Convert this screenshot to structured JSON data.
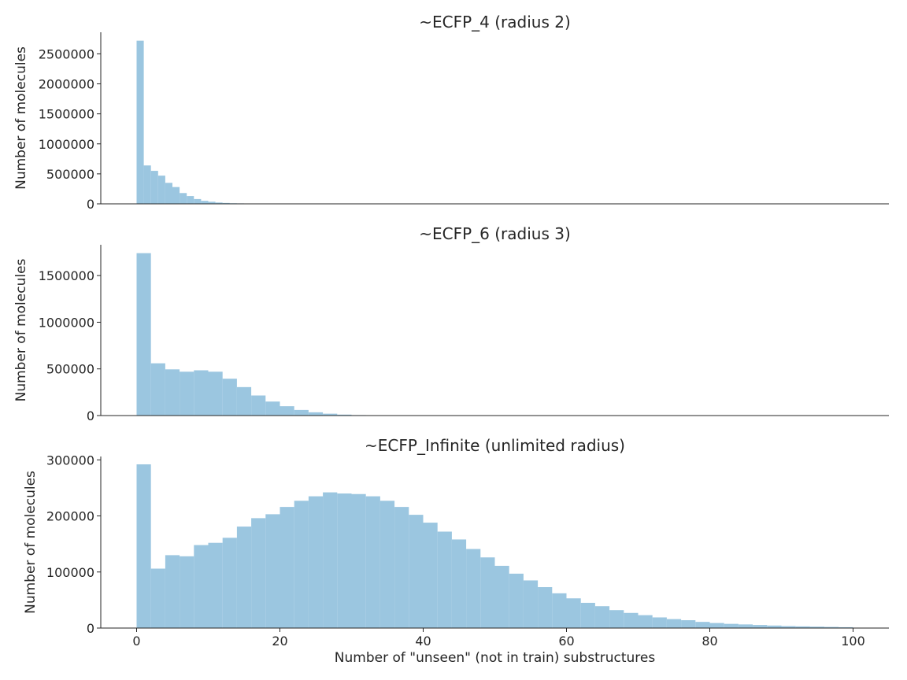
{
  "chart_data": [
    {
      "type": "bar",
      "title": "~ECFP_4 (radius 2)",
      "ylabel": "Number of molecules",
      "xlabel": "",
      "bar_color": "#9bc6e0",
      "bin_width": 1,
      "x_start": 0,
      "values": [
        2720000,
        640000,
        550000,
        470000,
        350000,
        280000,
        180000,
        130000,
        80000,
        50000,
        35000,
        22000,
        15000,
        10000,
        8000,
        6000,
        5000,
        4000,
        3000
      ],
      "ylim": [
        0,
        2860000
      ],
      "xlim": [
        -5,
        105
      ],
      "yticks": [
        0,
        500000,
        1000000,
        1500000,
        2000000,
        2500000
      ],
      "ytick_labels": [
        "0",
        "500000",
        "1000000",
        "1500000",
        "2000000",
        "2500000"
      ],
      "xticks": [],
      "xtick_labels": []
    },
    {
      "type": "bar",
      "title": "~ECFP_6 (radius 3)",
      "ylabel": "Number of molecules",
      "xlabel": "",
      "bar_color": "#9bc6e0",
      "bin_width": 2,
      "x_start": 0,
      "values": [
        1740000,
        560000,
        495000,
        470000,
        485000,
        470000,
        395000,
        305000,
        215000,
        150000,
        100000,
        60000,
        35000,
        20000,
        10000,
        5000
      ],
      "ylim": [
        0,
        1830000
      ],
      "xlim": [
        -5,
        105
      ],
      "yticks": [
        0,
        500000,
        1000000,
        1500000
      ],
      "ytick_labels": [
        "0",
        "500000",
        "1000000",
        "1500000"
      ],
      "xticks": [],
      "xtick_labels": []
    },
    {
      "type": "bar",
      "title": "~ECFP_Infinite (unlimited radius)",
      "ylabel": "Number of molecules",
      "xlabel": "Number of \"unseen\" (not in train) substructures",
      "bar_color": "#9bc6e0",
      "bin_width": 2,
      "x_start": 0,
      "values": [
        292000,
        106000,
        130000,
        128000,
        148000,
        152000,
        161000,
        181000,
        196000,
        203000,
        216000,
        227000,
        235000,
        242000,
        240000,
        239000,
        235000,
        227000,
        216000,
        202000,
        188000,
        172000,
        158000,
        141000,
        126000,
        111000,
        97000,
        85000,
        73000,
        62000,
        53000,
        45000,
        39000,
        32000,
        27000,
        23000,
        19000,
        16000,
        14000,
        11000,
        9000,
        7500,
        6500,
        5500,
        4500,
        3500,
        3000,
        2500,
        2000,
        1500
      ],
      "ylim": [
        0,
        306000
      ],
      "xlim": [
        -5,
        105
      ],
      "yticks": [
        0,
        100000,
        200000,
        300000
      ],
      "ytick_labels": [
        "0",
        "100000",
        "200000",
        "300000"
      ],
      "xticks": [
        0,
        20,
        40,
        60,
        80,
        100
      ],
      "xtick_labels": [
        "0",
        "20",
        "40",
        "60",
        "80",
        "100"
      ]
    }
  ]
}
